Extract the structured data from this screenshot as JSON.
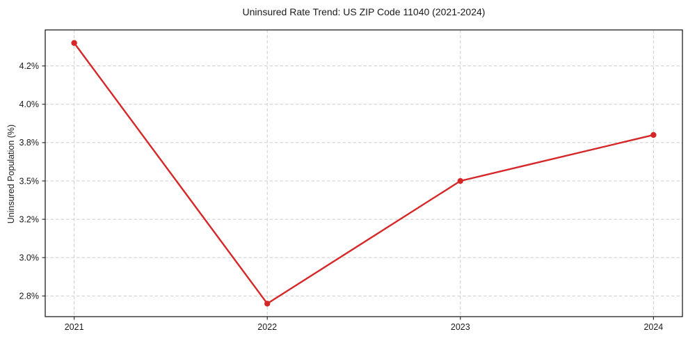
{
  "chart_data": {
    "type": "line",
    "title": "Uninsured Rate Trend: US ZIP Code 11040 (2021-2024)",
    "xlabel": "",
    "ylabel": "Uninsured Population (%)",
    "x": [
      2021,
      2022,
      2023,
      2024
    ],
    "categories": [
      "2021",
      "2022",
      "2023",
      "2024"
    ],
    "values": [
      4.4,
      2.7,
      3.5,
      3.8
    ],
    "yticks": [
      2.75,
      3.0,
      3.25,
      3.5,
      3.75,
      4.0,
      4.25
    ],
    "ytick_labels": [
      "2.8%",
      "3.0%",
      "3.2%",
      "3.5%",
      "3.8%",
      "4.0%",
      "4.2%"
    ],
    "xlim": [
      2020.85,
      2024.15
    ],
    "ylim": [
      2.615,
      4.485
    ],
    "grid": true,
    "grid_style": "dashed",
    "legend": "none",
    "marker": "circle",
    "colors": {
      "line": "#d62728",
      "grid": "#cccccc",
      "axis": "#1f1f1f",
      "text": "#1a1a1a",
      "background": "#ffffff"
    }
  }
}
